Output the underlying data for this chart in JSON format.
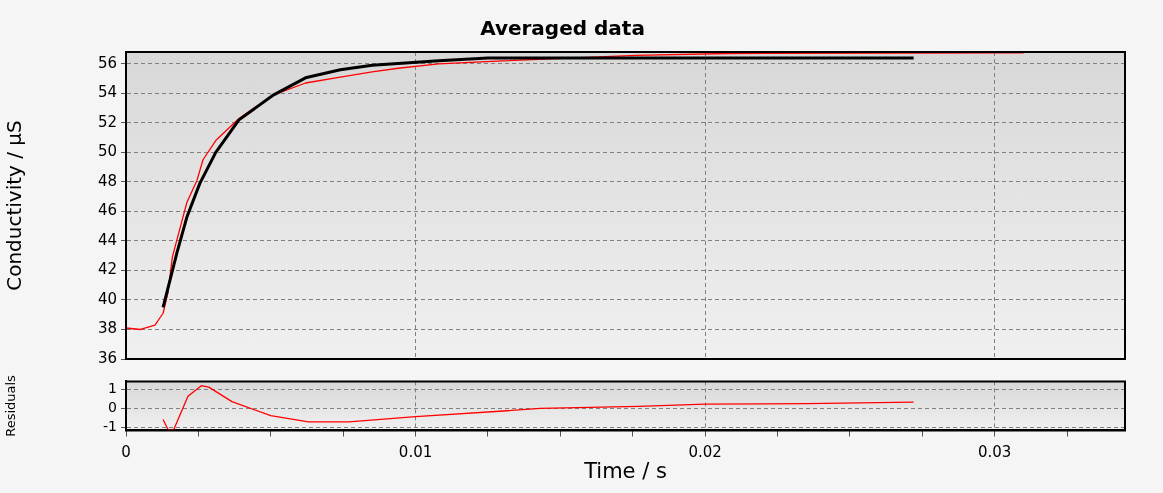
{
  "chart_data": [
    {
      "type": "line",
      "title": "Averaged data",
      "ylabel": "Conductivity / µS",
      "xlim": [
        0,
        0.0345
      ],
      "xticks": [
        0,
        0.01,
        0.02,
        0.03
      ],
      "ylim": [
        36,
        56.8
      ],
      "yticks": [
        36,
        38,
        40,
        42,
        44,
        46,
        48,
        50,
        52,
        54,
        56
      ],
      "grid": true,
      "tick_labels": "y",
      "line_style": "solid",
      "marker": "none",
      "legend": false,
      "series": [
        {
          "color": "#ff0000",
          "x": [
            0,
            0.0005,
            0.001,
            0.00128,
            0.00145,
            0.0016,
            0.0021,
            0.00245,
            0.00266,
            0.0031,
            0.0039,
            0.0051,
            0.0062,
            0.0074,
            0.0085,
            0.0094,
            0.0108,
            0.013,
            0.0176,
            0.0208,
            0.031
          ],
          "values": [
            38.1,
            38.0,
            38.3,
            39.1,
            40.5,
            42.9,
            46.6,
            48.1,
            49.5,
            50.8,
            52.3,
            53.9,
            54.7,
            55.1,
            55.45,
            55.7,
            56.0,
            56.2,
            56.57,
            56.7,
            56.75
          ]
        },
        {
          "color": "#000000",
          "x": [
            0.00128,
            0.00176,
            0.0021,
            0.00255,
            0.0031,
            0.0039,
            0.0051,
            0.0062,
            0.0074,
            0.0085,
            0.0108,
            0.0125,
            0.0272
          ],
          "values": [
            39.5,
            43.2,
            45.6,
            47.9,
            50.0,
            52.2,
            53.9,
            55.05,
            55.6,
            55.9,
            56.2,
            56.4,
            56.4
          ]
        }
      ]
    },
    {
      "type": "line",
      "xlabel": "Time / s",
      "ylabel": "Residuals",
      "xlim": [
        0,
        0.0345
      ],
      "xticks": [
        0,
        {
          "value": 0.0025,
          "label": null
        },
        {
          "value": 0.005,
          "label": null
        },
        {
          "value": 0.0075,
          "label": null
        },
        0.01,
        {
          "value": 0.0125,
          "label": null
        },
        {
          "value": 0.015,
          "label": null
        },
        {
          "value": 0.0175,
          "label": null
        },
        0.02,
        {
          "value": 0.0225,
          "label": null
        },
        {
          "value": 0.025,
          "label": null
        },
        {
          "value": 0.0275,
          "label": null
        },
        0.03,
        {
          "value": 0.0325,
          "label": null
        }
      ],
      "ylim": [
        -1.15,
        1.4
      ],
      "yticks": [
        -1,
        0,
        1
      ],
      "grid": true,
      "line_style": "solid",
      "marker": "none",
      "legend": false,
      "series": [
        {
          "color": "#ff0000",
          "x": [
            0.00128,
            0.00145,
            0.00165,
            0.00214,
            0.0026,
            0.00286,
            0.00366,
            0.005,
            0.0063,
            0.0077,
            0.01,
            0.0129,
            0.0143,
            0.0177,
            0.02,
            0.0235,
            0.0272
          ],
          "values": [
            -0.58,
            -1.1,
            -1.1,
            0.63,
            1.18,
            1.1,
            0.35,
            -0.38,
            -0.7,
            -0.7,
            -0.43,
            -0.15,
            0.0,
            0.1,
            0.22,
            0.25,
            0.32
          ]
        }
      ]
    }
  ]
}
